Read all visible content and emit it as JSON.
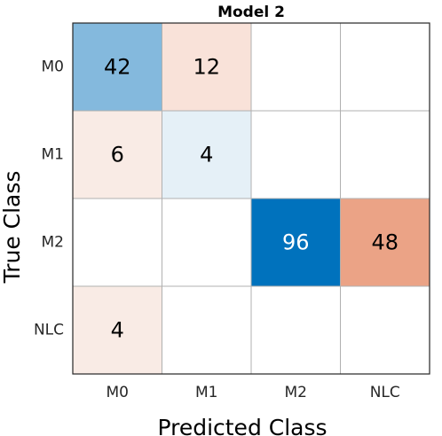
{
  "chart_data": {
    "type": "heatmap",
    "title": "Model 2",
    "xlabel": "Predicted Class",
    "ylabel": "True Class",
    "x_categories": [
      "M0",
      "M1",
      "M2",
      "NLC"
    ],
    "y_categories": [
      "M0",
      "M1",
      "M2",
      "NLC"
    ],
    "matrix": [
      [
        42,
        12,
        null,
        null
      ],
      [
        6,
        4,
        null,
        null
      ],
      [
        null,
        null,
        96,
        48
      ],
      [
        4,
        null,
        null,
        null
      ]
    ],
    "cell_colors": [
      [
        "#84b9dd",
        "#f9e2d9",
        null,
        null
      ],
      [
        "#f9ebe5",
        "#e5f0f7",
        null,
        null
      ],
      [
        null,
        null,
        "#0072bd",
        "#eba386"
      ],
      [
        "#f9ebe5",
        null,
        null,
        null
      ]
    ],
    "text_colors": [
      [
        "#000000",
        "#000000",
        null,
        null
      ],
      [
        "#000000",
        "#000000",
        null,
        null
      ],
      [
        null,
        null,
        "#ffffff",
        "#000000"
      ],
      [
        "#000000",
        null,
        null,
        null
      ]
    ],
    "grid_color": "#b0b0b0",
    "frame_color": "#262626"
  }
}
